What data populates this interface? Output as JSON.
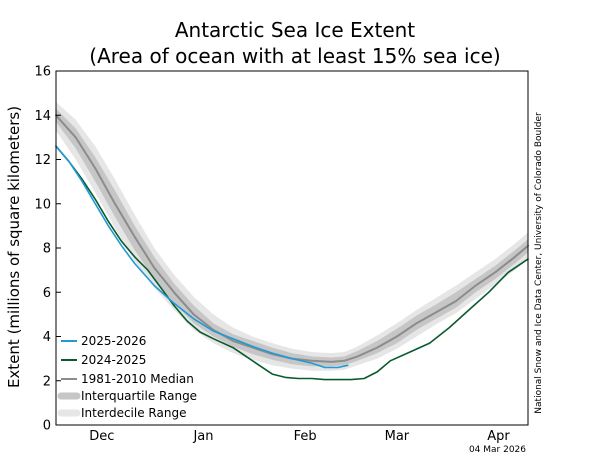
{
  "chart_data": {
    "type": "line",
    "title": "Antarctic Sea Ice Extent",
    "subtitle": "(Area of ocean with at least 15% sea ice)",
    "ylabel": "Extent (millions of square kilometers)",
    "xlabel": "",
    "ylim": [
      0,
      16
    ],
    "yticks": [
      "0",
      "2",
      "4",
      "6",
      "8",
      "10",
      "12",
      "14",
      "16"
    ],
    "xlim": [
      0,
      144
    ],
    "xticks": [
      {
        "label": "Dec",
        "pos": 14
      },
      {
        "label": "Jan",
        "pos": 45
      },
      {
        "label": "Feb",
        "pos": 76
      },
      {
        "label": "Mar",
        "pos": 104
      },
      {
        "label": "Apr",
        "pos": 135
      }
    ],
    "grid": false,
    "legend_position": "bottom-left",
    "legend": [
      {
        "label": "2025-2026",
        "color": "#1f9ad6",
        "kind": "line"
      },
      {
        "label": "2024-2025",
        "color": "#0b5a2e",
        "kind": "line"
      },
      {
        "label": "1981-2010 Median",
        "color": "#8c8c8c",
        "kind": "line"
      },
      {
        "label": "Interquartile Range",
        "color": "#c6c6c6",
        "kind": "band"
      },
      {
        "label": "Interdecile Range",
        "color": "#e6e6e6",
        "kind": "band"
      }
    ],
    "credit": "National Snow and Ice Data Center, University of Colorado Boulder",
    "date_stamp": "04 Mar 2026",
    "series": [
      {
        "name": "1981-2010 Median",
        "color": "#8c8c8c",
        "x": [
          0,
          6,
          12,
          18,
          24,
          30,
          36,
          42,
          48,
          54,
          60,
          66,
          72,
          78,
          84,
          88,
          92,
          98,
          104,
          110,
          116,
          122,
          128,
          134,
          140,
          144
        ],
        "y": [
          14.0,
          13.0,
          11.6,
          10.0,
          8.5,
          7.1,
          6.0,
          5.0,
          4.3,
          3.8,
          3.5,
          3.2,
          3.0,
          2.9,
          2.85,
          2.9,
          3.1,
          3.5,
          4.0,
          4.6,
          5.1,
          5.6,
          6.3,
          6.9,
          7.6,
          8.1
        ]
      },
      {
        "name": "Interquartile Range",
        "color": "#c6c6c6",
        "x": [
          0,
          6,
          12,
          18,
          24,
          30,
          36,
          42,
          48,
          54,
          60,
          66,
          72,
          78,
          84,
          88,
          92,
          98,
          104,
          110,
          116,
          122,
          128,
          134,
          140,
          144
        ],
        "upper": [
          14.3,
          13.4,
          12.1,
          10.6,
          9.0,
          7.6,
          6.4,
          5.4,
          4.6,
          4.1,
          3.8,
          3.5,
          3.25,
          3.1,
          3.05,
          3.1,
          3.35,
          3.8,
          4.35,
          4.95,
          5.45,
          6.0,
          6.6,
          7.2,
          7.9,
          8.4
        ],
        "lower": [
          13.7,
          12.5,
          11.0,
          9.4,
          7.9,
          6.6,
          5.5,
          4.6,
          4.0,
          3.55,
          3.2,
          2.95,
          2.75,
          2.65,
          2.65,
          2.7,
          2.9,
          3.25,
          3.7,
          4.3,
          4.8,
          5.3,
          6.0,
          6.6,
          7.3,
          7.8
        ]
      },
      {
        "name": "Interdecile Range",
        "color": "#e6e6e6",
        "x": [
          0,
          6,
          12,
          18,
          24,
          30,
          36,
          42,
          48,
          54,
          60,
          66,
          72,
          78,
          84,
          88,
          92,
          98,
          104,
          110,
          116,
          122,
          128,
          134,
          140,
          144
        ],
        "upper": [
          14.6,
          13.8,
          12.6,
          11.1,
          9.5,
          8.0,
          6.8,
          5.8,
          5.0,
          4.4,
          4.0,
          3.7,
          3.45,
          3.3,
          3.25,
          3.3,
          3.55,
          4.05,
          4.6,
          5.2,
          5.75,
          6.3,
          6.9,
          7.5,
          8.2,
          8.7
        ],
        "lower": [
          13.3,
          12.0,
          10.5,
          8.9,
          7.4,
          6.2,
          5.2,
          4.3,
          3.7,
          3.25,
          2.95,
          2.7,
          2.55,
          2.45,
          2.45,
          2.5,
          2.7,
          3.0,
          3.45,
          4.0,
          4.55,
          5.05,
          5.7,
          6.35,
          7.0,
          7.5
        ]
      },
      {
        "name": "2025-2026",
        "color": "#1f9ad6",
        "x": [
          0,
          4,
          8,
          12,
          16,
          20,
          24,
          30,
          36,
          42,
          48,
          54,
          60,
          66,
          72,
          78,
          80,
          82,
          86,
          89
        ],
        "y": [
          12.6,
          11.9,
          11.0,
          10.0,
          9.0,
          8.1,
          7.3,
          6.3,
          5.5,
          4.8,
          4.25,
          3.9,
          3.55,
          3.25,
          3.0,
          2.8,
          2.7,
          2.6,
          2.6,
          2.7
        ]
      },
      {
        "name": "2024-2025",
        "color": "#0b5a2e",
        "x": [
          0,
          4,
          8,
          12,
          16,
          20,
          24,
          28,
          32,
          36,
          40,
          44,
          48,
          54,
          58,
          62,
          66,
          70,
          74,
          78,
          82,
          86,
          90,
          94,
          98,
          102,
          108,
          114,
          120,
          126,
          132,
          138,
          144
        ],
        "y": [
          12.6,
          11.9,
          11.1,
          10.2,
          9.2,
          8.3,
          7.6,
          7.0,
          6.2,
          5.4,
          4.7,
          4.2,
          3.9,
          3.5,
          3.1,
          2.7,
          2.3,
          2.15,
          2.1,
          2.1,
          2.05,
          2.05,
          2.05,
          2.1,
          2.4,
          2.9,
          3.3,
          3.7,
          4.4,
          5.2,
          6.0,
          6.9,
          7.5
        ]
      }
    ]
  }
}
